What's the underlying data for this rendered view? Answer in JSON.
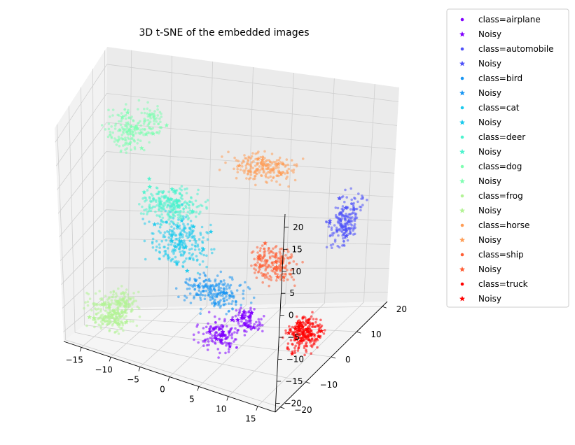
{
  "chart_data": {
    "type": "scatter",
    "projection": "3d",
    "title": "3D t-SNE of the embedded images",
    "xlabel": "",
    "ylabel": "",
    "zlabel": "",
    "x_ticks": [
      -15,
      -10,
      -5,
      0,
      5,
      10,
      15
    ],
    "y_ticks": [
      -20,
      -10,
      0,
      10,
      20
    ],
    "z_ticks": [
      -20,
      -15,
      -10,
      -5,
      0,
      5,
      10,
      15,
      20
    ],
    "xlim": [
      -18,
      18
    ],
    "ylim": [
      -22,
      22
    ],
    "zlim": [
      -22,
      23
    ],
    "grid": true,
    "legend_position": "outside-right",
    "markers": {
      "class": "dot",
      "noisy": "star"
    },
    "series": [
      {
        "name": "class=airplane",
        "noisy_label": "Noisy",
        "color": "#8000ff",
        "clusters": [
          {
            "x": 5,
            "y": -12,
            "z": -15,
            "spread": [
              2.5,
              3.0,
              2.5
            ],
            "count": 150
          },
          {
            "x": 10,
            "y": -14,
            "z": -9,
            "spread": [
              2.0,
              2.0,
              2.0
            ],
            "count": 90
          }
        ]
      },
      {
        "name": "class=automobile",
        "noisy_label": "Noisy",
        "color": "#4f52f9",
        "clusters": [
          {
            "x": 17,
            "y": 6,
            "z": 4,
            "spread": [
              1.5,
              4.0,
              3.5
            ],
            "count": 200
          }
        ]
      },
      {
        "name": "class=bird",
        "noisy_label": "Noisy",
        "color": "#1996f3",
        "clusters": [
          {
            "x": 2,
            "y": -4,
            "z": -10,
            "spread": [
              3.5,
              3.5,
              2.5
            ],
            "count": 220
          }
        ]
      },
      {
        "name": "class=cat",
        "noisy_label": "Noisy",
        "color": "#1ccaed",
        "clusters": [
          {
            "x": -4,
            "y": 0,
            "z": -3,
            "spread": [
              3.5,
              4.0,
              4.0
            ],
            "count": 240
          }
        ]
      },
      {
        "name": "class=deer",
        "noisy_label": "Noisy",
        "color": "#4df3ce",
        "clusters": [
          {
            "x": -6,
            "y": 3,
            "z": 3,
            "spread": [
              3.5,
              3.5,
              2.5
            ],
            "count": 260
          }
        ]
      },
      {
        "name": "class=dog",
        "noisy_label": "Noisy",
        "color": "#81feb3",
        "clusters": [
          {
            "x": -14,
            "y": 12,
            "z": 12,
            "spread": [
              2.0,
              3.0,
              3.0
            ],
            "count": 150
          },
          {
            "x": -11,
            "y": 14,
            "z": 14,
            "spread": [
              1.5,
              2.0,
              2.5
            ],
            "count": 70
          }
        ]
      },
      {
        "name": "class=frog",
        "noisy_label": "Noisy",
        "color": "#b3f396",
        "clusters": [
          {
            "x": -12,
            "y": -12,
            "z": -16,
            "spread": [
              3.0,
              3.0,
              3.0
            ],
            "count": 220
          },
          {
            "x": -9,
            "y": -14,
            "z": -12,
            "spread": [
              2.0,
              2.0,
              2.0
            ],
            "count": 80
          }
        ]
      },
      {
        "name": "class=horse",
        "noisy_label": "Noisy",
        "color": "#ff9d56",
        "clusters": [
          {
            "x": 3,
            "y": 16,
            "z": 7,
            "spread": [
              3.5,
              2.5,
              2.0
            ],
            "count": 200
          }
        ]
      },
      {
        "name": "class=ship",
        "noisy_label": "Noisy",
        "color": "#ff5e35",
        "clusters": [
          {
            "x": 8,
            "y": 4,
            "z": -6,
            "spread": [
              2.5,
              3.0,
              3.0
            ],
            "count": 200
          }
        ]
      },
      {
        "name": "class=truck",
        "noisy_label": "Noisy",
        "color": "#ff0000",
        "clusters": [
          {
            "x": 16,
            "y": -6,
            "z": -14,
            "spread": [
              2.0,
              3.5,
              2.5
            ],
            "count": 260
          }
        ]
      }
    ]
  }
}
